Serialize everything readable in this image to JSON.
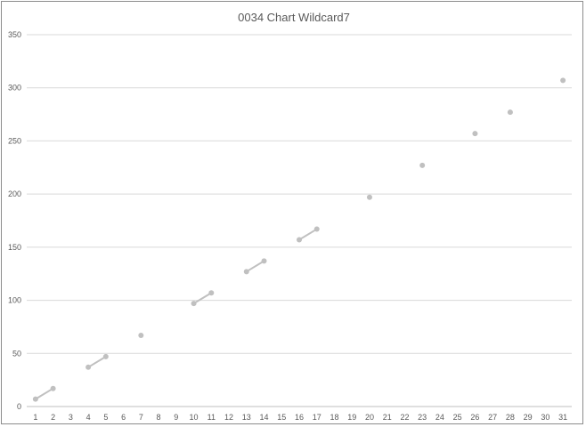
{
  "chart_data": {
    "type": "line",
    "title": "0034 Chart Wildcard7",
    "xlabel": "",
    "ylabel": "",
    "categories": [
      "1",
      "2",
      "3",
      "4",
      "5",
      "6",
      "7",
      "8",
      "9",
      "10",
      "11",
      "12",
      "13",
      "14",
      "15",
      "16",
      "17",
      "18",
      "19",
      "20",
      "21",
      "22",
      "23",
      "24",
      "25",
      "26",
      "27",
      "28",
      "29",
      "30",
      "31"
    ],
    "ylim": [
      0,
      350
    ],
    "yticks": [
      0,
      50,
      100,
      150,
      200,
      250,
      300,
      350
    ],
    "grid": true,
    "legend": "none",
    "series": [
      {
        "values": [
          7,
          17,
          null,
          37,
          47,
          null,
          67,
          null,
          null,
          97,
          107,
          null,
          127,
          137,
          null,
          157,
          167,
          null,
          null,
          197,
          null,
          null,
          227,
          null,
          null,
          257,
          null,
          277,
          null,
          null,
          307
        ],
        "color": "#c0c0c0"
      }
    ]
  }
}
